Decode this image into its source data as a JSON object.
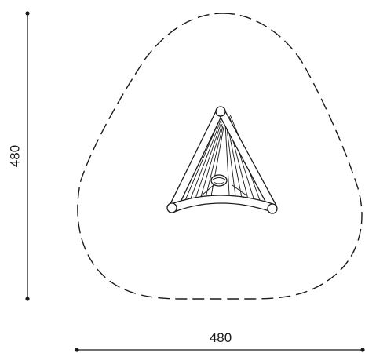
{
  "dimensions": {
    "height_label": "480",
    "width_label": "480"
  }
}
